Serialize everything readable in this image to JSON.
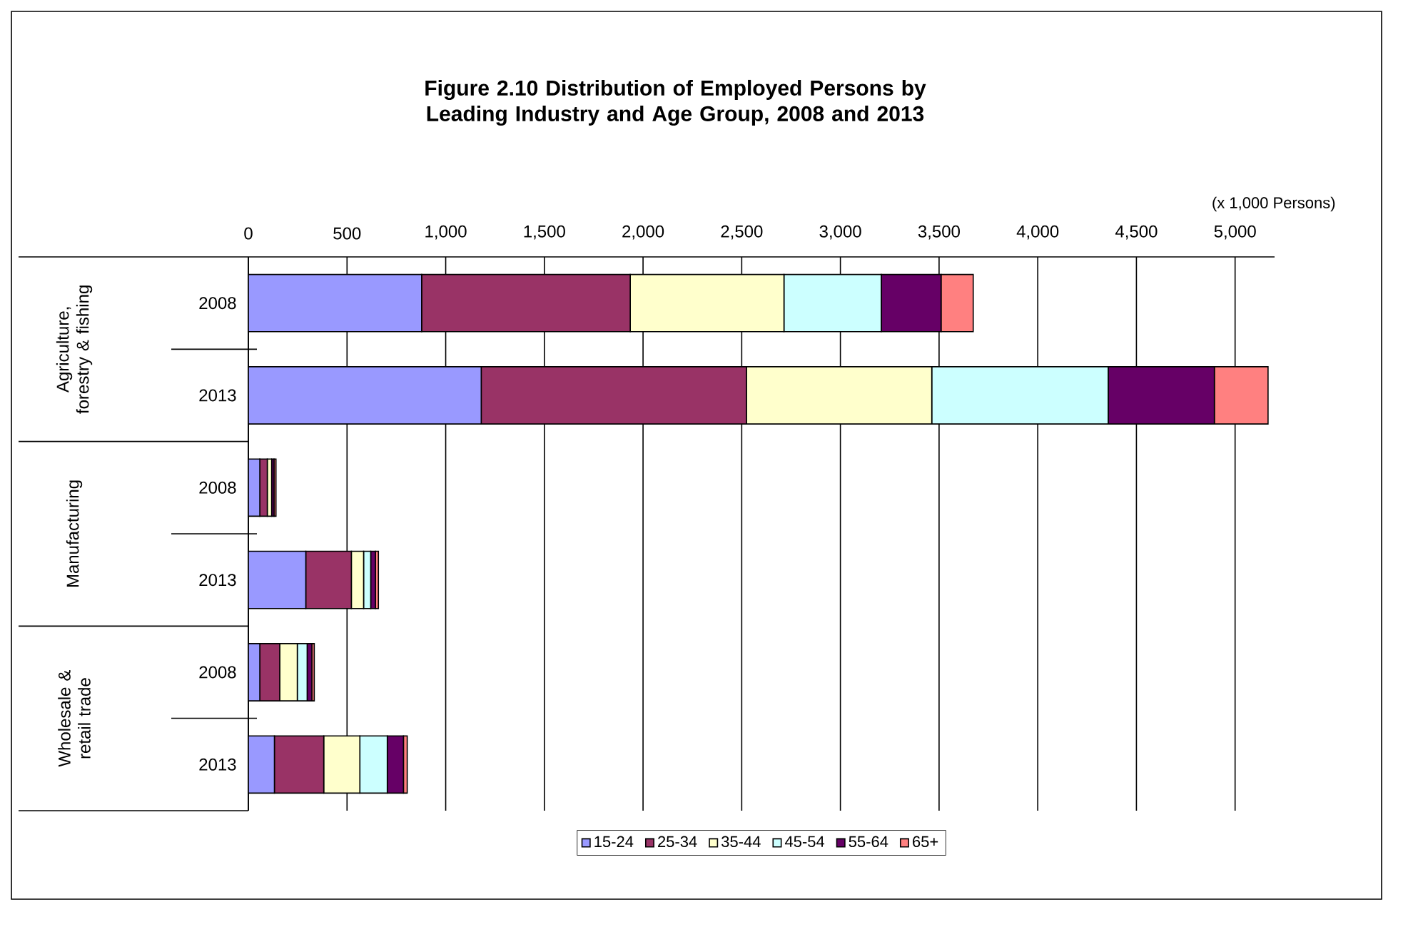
{
  "chart_data": {
    "type": "bar",
    "orientation": "horizontal",
    "stacked": true,
    "title": "Figure 2.10   Distribution of Employed Persons by  Leading Industry and Age Group, 2008 and 2013",
    "categories": [
      "2008",
      "2013",
      "2008",
      "2013",
      "2008",
      "2013"
    ],
    "annotations": [
      "Agriculture, forestry & fishing",
      "Manufacturing",
      "Wholesale & retail trade",
      "(x 1,000 Persons)"
    ],
    "series": [
      {
        "name": "15-24",
        "color": "#9999ff",
        "values": [
          878,
          1180,
          58,
          291,
          58,
          132
        ]
      },
      {
        "name": "25-34",
        "color": "#993366",
        "values": [
          1057,
          1344,
          38,
          231,
          101,
          250
        ]
      },
      {
        "name": "35-44",
        "color": "#ffffcc",
        "values": [
          779,
          939,
          22,
          62,
          89,
          183
        ]
      },
      {
        "name": "45-54",
        "color": "#ccffff",
        "values": [
          493,
          894,
          null,
          36,
          50,
          139
        ]
      },
      {
        "name": "55-64",
        "color": "#660066",
        "values": [
          303,
          538,
          12,
          24,
          24,
          82
        ]
      },
      {
        "name": "65+",
        "color": "#ff8080",
        "values": [
          163,
          272,
          10,
          15,
          12,
          19
        ]
      }
    ],
    "xlim": [
      0,
      5200
    ],
    "xticks": [
      0,
      500,
      {
        "value": 1000,
        "label": "1,000"
      },
      {
        "value": 1500,
        "label": "1,500"
      },
      {
        "value": 2000,
        "label": "2,000"
      },
      {
        "value": 2500,
        "label": "2,500"
      },
      {
        "value": 3000,
        "label": "3,000"
      },
      {
        "value": 3500,
        "label": "3,500"
      },
      {
        "value": 4000,
        "label": "4,000"
      },
      {
        "value": 4500,
        "label": "4,500"
      },
      {
        "value": 5000,
        "label": "5,000"
      }
    ],
    "grid": "x",
    "legend": "bottom"
  }
}
